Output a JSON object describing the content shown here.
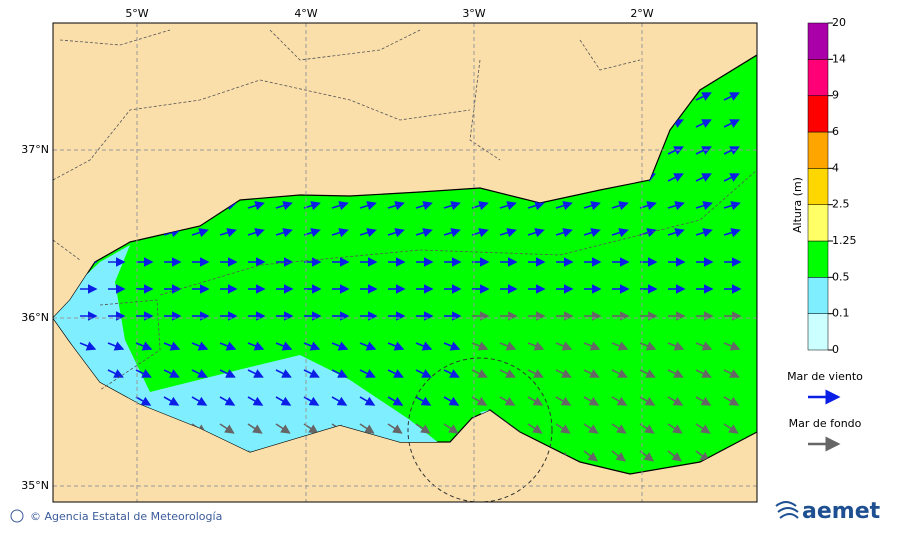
{
  "map": {
    "lon_labels": [
      "5°W",
      "4°W",
      "3°W",
      "2°W"
    ],
    "lat_labels": [
      "37°N",
      "36°N",
      "35°N"
    ],
    "colorbar": {
      "title": "Altura (m)",
      "levels": [
        0,
        0.1,
        0.5,
        1.25,
        2.5,
        4,
        6,
        9,
        14,
        20
      ],
      "colors": [
        "#ccffff",
        "#7fefff",
        "#00ff00",
        "#ffff66",
        "#ffd700",
        "#ffa500",
        "#ff0000",
        "#ff0077",
        "#aa00aa"
      ]
    },
    "legend": [
      {
        "label": "Mar de viento",
        "color": "#0a1ee6"
      },
      {
        "label": "Mar de fondo",
        "color": "#666666"
      }
    ],
    "footer": {
      "credit": "© Agencia Estatal de Meteorología",
      "logo": "aemet"
    }
  }
}
